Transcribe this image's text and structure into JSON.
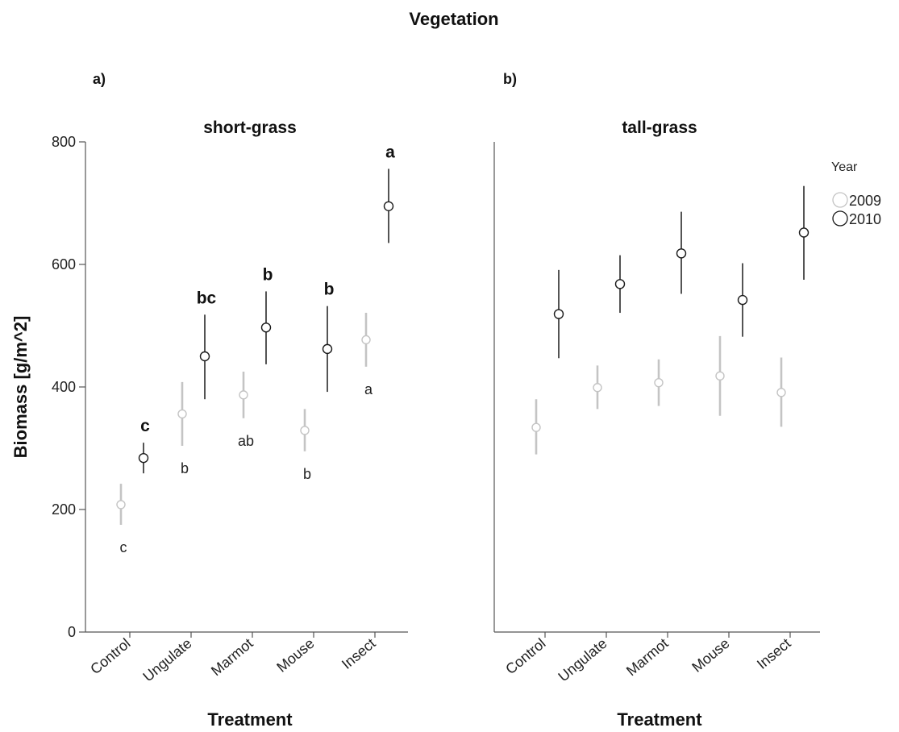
{
  "title": "Vegetation",
  "colors": {
    "2009": "#c4c4c4",
    "2010": "#1a1a1a",
    "axis": "#555555"
  },
  "legend": {
    "title": "Year",
    "items": [
      "2009",
      "2010"
    ]
  },
  "chart_data": [
    {
      "type": "scatter",
      "panel_label": "a)",
      "title": "short-grass",
      "xlabel": "Treatment",
      "ylabel": "Biomass [g/m^2]",
      "ylim": [
        0,
        800
      ],
      "yticks": [
        0,
        200,
        400,
        600,
        800
      ],
      "categories": [
        "Control",
        "Ungulate",
        "Marmot",
        "Mouse",
        "Insect"
      ],
      "series": [
        {
          "name": "2009",
          "values": [
            208,
            356,
            387,
            329,
            477
          ],
          "lower": [
            175,
            304,
            349,
            295,
            433
          ],
          "upper": [
            242,
            408,
            425,
            364,
            521
          ],
          "letters": [
            "c",
            "b",
            "ab",
            "b",
            "a"
          ]
        },
        {
          "name": "2010",
          "values": [
            284,
            450,
            497,
            462,
            695
          ],
          "lower": [
            259,
            380,
            437,
            392,
            635
          ],
          "upper": [
            309,
            518,
            556,
            532,
            756
          ],
          "letters": [
            "c",
            "bc",
            "b",
            "b",
            "a"
          ]
        }
      ]
    },
    {
      "type": "scatter",
      "panel_label": "b)",
      "title": "tall-grass",
      "xlabel": "Treatment",
      "ylabel": "",
      "ylim": [
        0,
        800
      ],
      "yticks": [],
      "categories": [
        "Control",
        "Ungulate",
        "Marmot",
        "Mouse",
        "Insect"
      ],
      "series": [
        {
          "name": "2009",
          "values": [
            334,
            399,
            407,
            418,
            391
          ],
          "lower": [
            290,
            364,
            369,
            353,
            335
          ],
          "upper": [
            380,
            435,
            445,
            483,
            448
          ],
          "letters": []
        },
        {
          "name": "2010",
          "values": [
            519,
            568,
            618,
            542,
            652
          ],
          "lower": [
            447,
            521,
            552,
            482,
            575
          ],
          "upper": [
            591,
            615,
            686,
            602,
            728
          ],
          "letters": []
        }
      ]
    }
  ]
}
